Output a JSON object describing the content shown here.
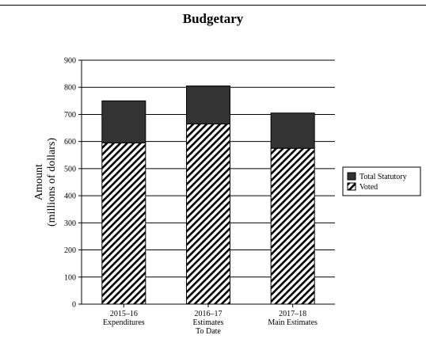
{
  "chart_data": {
    "type": "bar",
    "stacked": true,
    "title": "Budgetary",
    "ylabel_lines": [
      "Amount",
      "(millions of dollars)"
    ],
    "ylim": [
      0,
      900
    ],
    "yticks": [
      "0",
      "100",
      "200",
      "300",
      "400",
      "500",
      "600",
      "700",
      "800",
      "900"
    ],
    "ytick_values": [
      0,
      100,
      200,
      300,
      400,
      500,
      600,
      700,
      800,
      900
    ],
    "grid": true,
    "legend_position": "right",
    "categories": [
      [
        "2015–16",
        "Expenditures"
      ],
      [
        "2016–17",
        "Estimates",
        "To Date"
      ],
      [
        "2017–18",
        "Main Estimates"
      ]
    ],
    "series": [
      {
        "name": "Voted",
        "values": [
          595,
          665,
          575
        ],
        "pattern": "hatch"
      },
      {
        "name": "Total Statutory",
        "values": [
          155,
          140,
          130
        ],
        "color": "#333333"
      }
    ],
    "legend": [
      "Total Statutory",
      "Voted"
    ]
  }
}
